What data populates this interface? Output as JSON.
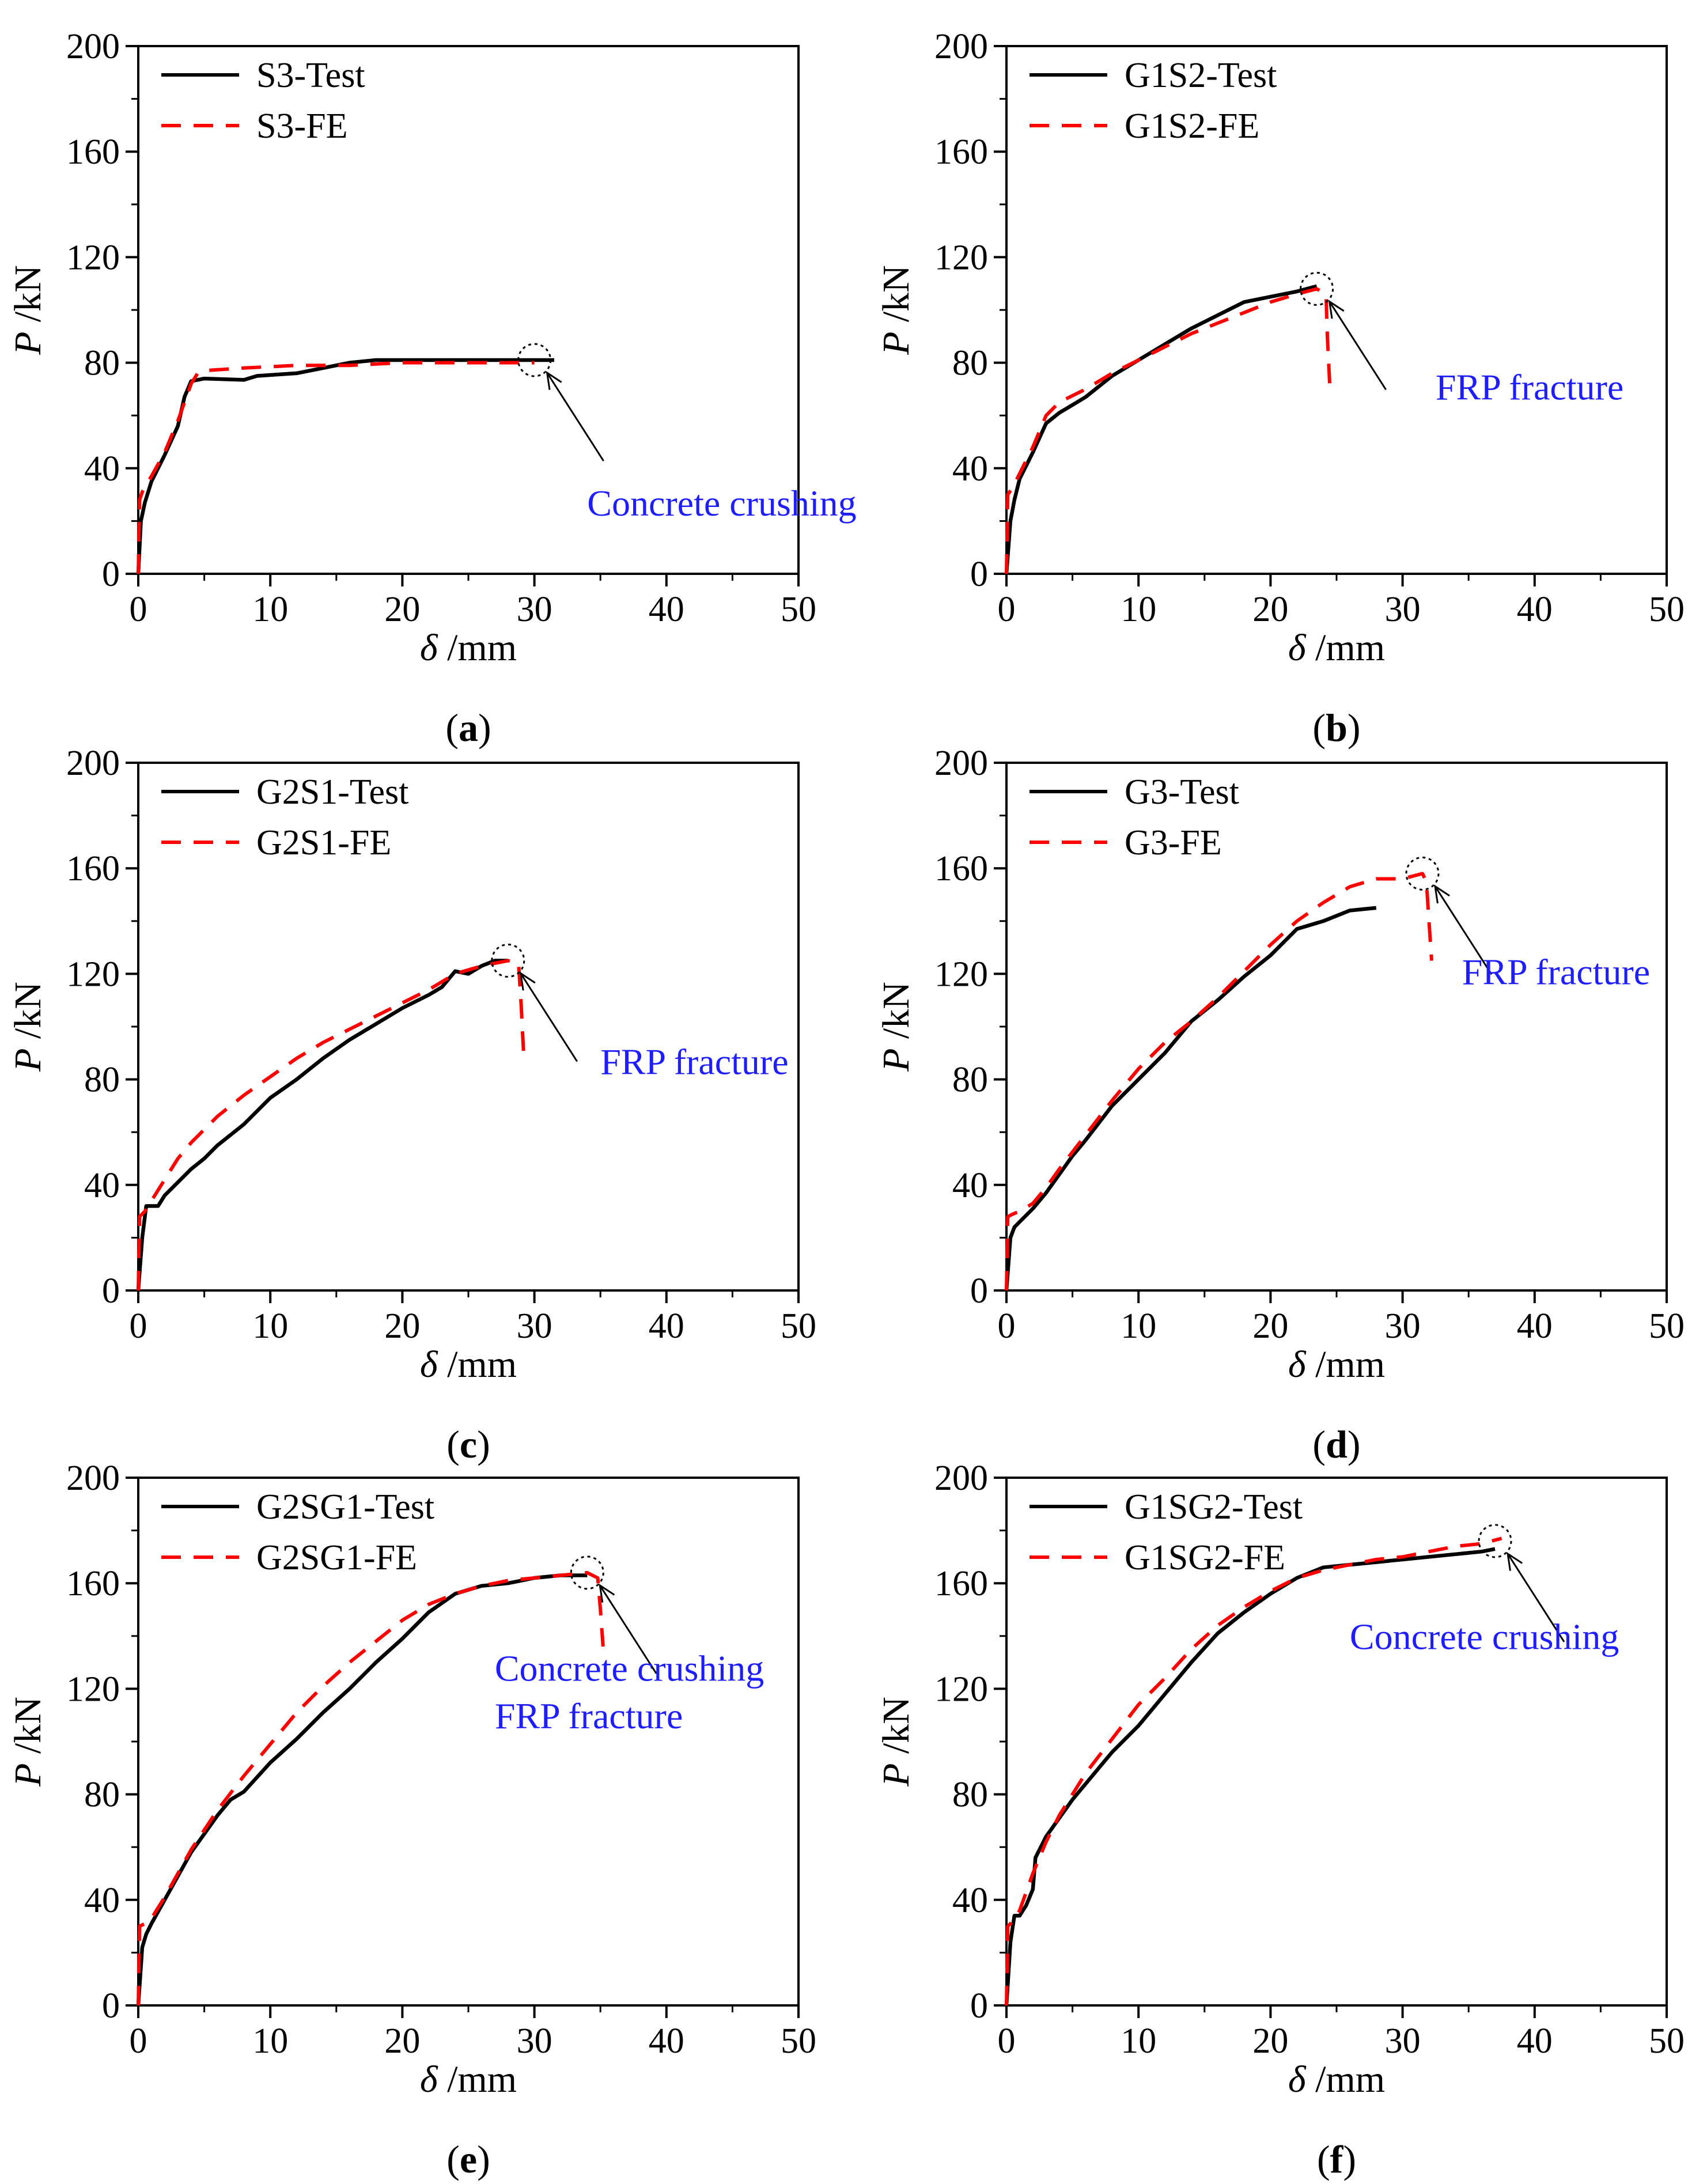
{
  "figure": {
    "panel_label_template": [
      "(",
      ")"
    ]
  },
  "chart_data": [
    {
      "type": "line",
      "panel": "a",
      "xlabel": "δ /mm",
      "ylabel": "P /kN",
      "xlim": [
        0,
        50
      ],
      "ylim": [
        0,
        200
      ],
      "xticks": [
        0,
        10,
        20,
        30,
        40,
        50
      ],
      "yticks": [
        0,
        40,
        80,
        120,
        160,
        200
      ],
      "legend_position": "top-left",
      "series": [
        {
          "name": "S3-Test",
          "style": "solid",
          "color": "#000000",
          "x": [
            0,
            0.2,
            0.5,
            1,
            2,
            3,
            3.5,
            4,
            5,
            8,
            9,
            12,
            14,
            16,
            18,
            20,
            25,
            30,
            31.5
          ],
          "y": [
            0,
            20,
            27,
            35,
            45,
            56,
            67,
            73,
            74,
            73.5,
            75,
            76,
            78,
            80,
            81,
            81,
            81,
            81,
            81
          ]
        },
        {
          "name": "S3-FE",
          "style": "dashed",
          "color": "#ff0000",
          "x": [
            0,
            0.1,
            0.3,
            1,
            2,
            3,
            4,
            4.5,
            5,
            8,
            12,
            16,
            20,
            25,
            30
          ],
          "y": [
            0,
            28,
            31,
            37,
            46,
            58,
            72,
            76,
            77,
            78,
            79,
            79,
            80,
            80,
            80
          ]
        }
      ],
      "annotations": [
        {
          "text": "Concrete crushing",
          "x": 30,
          "y": 81,
          "tx": 34,
          "ty": 22
        }
      ]
    },
    {
      "type": "line",
      "panel": "b",
      "xlabel": "δ /mm",
      "ylabel": "P /kN",
      "xlim": [
        0,
        50
      ],
      "ylim": [
        0,
        200
      ],
      "xticks": [
        0,
        10,
        20,
        30,
        40,
        50
      ],
      "yticks": [
        0,
        40,
        80,
        120,
        160,
        200
      ],
      "legend_position": "top-left",
      "series": [
        {
          "name": "G1S2-Test",
          "style": "solid",
          "color": "#000000",
          "x": [
            0,
            0.3,
            0.6,
            1,
            2,
            3,
            4,
            5,
            6,
            8,
            10,
            12,
            14,
            16,
            18,
            20,
            22,
            23.5
          ],
          "y": [
            0,
            20,
            28,
            36,
            46,
            57,
            61,
            64,
            67,
            75,
            81,
            87,
            93,
            98,
            103,
            105,
            107,
            109
          ]
        },
        {
          "name": "G1S2-FE",
          "style": "dashed",
          "color": "#ff0000",
          "x": [
            0,
            0.1,
            0.5,
            1,
            2,
            3,
            4,
            6,
            8,
            10,
            12,
            14,
            16,
            18,
            20,
            22,
            23.5,
            24.2,
            24.3,
            24.5
          ],
          "y": [
            0,
            30,
            33,
            38,
            48,
            60,
            65,
            70,
            76,
            81,
            86,
            91,
            95,
            99,
            103,
            106,
            108,
            106,
            90,
            70
          ]
        }
      ],
      "annotations": [
        {
          "text": "FRP fracture",
          "x": 23.5,
          "y": 108,
          "tx": 32.5,
          "ty": 66
        }
      ]
    },
    {
      "type": "line",
      "panel": "c",
      "xlabel": "δ /mm",
      "ylabel": "P /kN",
      "xlim": [
        0,
        50
      ],
      "ylim": [
        0,
        200
      ],
      "xticks": [
        0,
        10,
        20,
        30,
        40,
        50
      ],
      "yticks": [
        0,
        40,
        80,
        120,
        160,
        200
      ],
      "legend_position": "top-left",
      "series": [
        {
          "name": "G2S1-Test",
          "style": "solid",
          "color": "#000000",
          "x": [
            0,
            0.3,
            0.6,
            1,
            1.5,
            2,
            3,
            4,
            5,
            6,
            8,
            10,
            12,
            14,
            16,
            18,
            20,
            22,
            23,
            24,
            25,
            26,
            27,
            28
          ],
          "y": [
            0,
            20,
            32,
            32,
            32,
            36,
            41,
            46,
            50,
            55,
            63,
            73,
            80,
            88,
            95,
            101,
            107,
            112,
            115,
            121,
            120,
            123,
            125,
            125
          ]
        },
        {
          "name": "G2S1-FE",
          "style": "dashed",
          "color": "#ff0000",
          "x": [
            0,
            0.1,
            0.5,
            1,
            2,
            3,
            4,
            6,
            8,
            10,
            12,
            14,
            16,
            18,
            20,
            22,
            24,
            26,
            28,
            28.8,
            29,
            29.2
          ],
          "y": [
            0,
            28,
            30,
            34,
            42,
            50,
            56,
            66,
            74,
            81,
            88,
            94,
            99,
            104,
            109,
            114,
            120,
            123,
            125,
            124,
            108,
            88
          ]
        }
      ],
      "annotations": [
        {
          "text": "FRP fracture",
          "x": 28,
          "y": 125,
          "tx": 35,
          "ty": 82
        }
      ]
    },
    {
      "type": "line",
      "panel": "d",
      "xlabel": "δ /mm",
      "ylabel": "P /kN",
      "xlim": [
        0,
        50
      ],
      "ylim": [
        0,
        200
      ],
      "xticks": [
        0,
        10,
        20,
        30,
        40,
        50
      ],
      "yticks": [
        0,
        40,
        80,
        120,
        160,
        200
      ],
      "legend_position": "top-left",
      "series": [
        {
          "name": "G3-Test",
          "style": "solid",
          "color": "#000000",
          "x": [
            0,
            0.3,
            0.6,
            1,
            2,
            3,
            4,
            5,
            6,
            8,
            10,
            12,
            14,
            16,
            18,
            20,
            22,
            24,
            26,
            28
          ],
          "y": [
            0,
            20,
            24,
            26,
            31,
            37,
            44,
            51,
            57,
            70,
            80,
            90,
            102,
            110,
            119,
            127,
            137,
            140,
            144,
            145
          ]
        },
        {
          "name": "G3-FE",
          "style": "dashed",
          "color": "#ff0000",
          "x": [
            0,
            0.1,
            0.5,
            1,
            2,
            3,
            4,
            6,
            8,
            10,
            12,
            14,
            16,
            18,
            20,
            22,
            24,
            26,
            28,
            30,
            31.5,
            31.8,
            32,
            32.2
          ],
          "y": [
            0,
            28,
            29,
            30,
            33,
            39,
            46,
            59,
            72,
            84,
            94,
            102,
            111,
            121,
            131,
            140,
            147,
            153,
            156,
            156,
            158,
            155,
            140,
            125
          ]
        }
      ],
      "annotations": [
        {
          "text": "FRP fracture",
          "x": 31.5,
          "y": 158,
          "tx": 34.5,
          "ty": 116
        }
      ]
    },
    {
      "type": "line",
      "panel": "e",
      "xlabel": "δ /mm",
      "ylabel": "P /kN",
      "xlim": [
        0,
        50
      ],
      "ylim": [
        0,
        200
      ],
      "xticks": [
        0,
        10,
        20,
        30,
        40,
        50
      ],
      "yticks": [
        0,
        40,
        80,
        120,
        160,
        200
      ],
      "legend_position": "top-left",
      "series": [
        {
          "name": "G2SG1-Test",
          "style": "solid",
          "color": "#000000",
          "x": [
            0,
            0.3,
            0.6,
            1,
            2,
            3,
            4,
            5,
            6,
            7,
            8,
            10,
            12,
            14,
            16,
            18,
            20,
            22,
            24,
            26,
            28,
            30,
            32,
            34
          ],
          "y": [
            0,
            22,
            27,
            31,
            40,
            49,
            58,
            65,
            72,
            78,
            81,
            92,
            101,
            111,
            120,
            130,
            139,
            149,
            156,
            159,
            160,
            162,
            163,
            163
          ]
        },
        {
          "name": "G2SG1-FE",
          "style": "dashed",
          "color": "#ff0000",
          "x": [
            0,
            0.1,
            0.5,
            1,
            2,
            3,
            4,
            6,
            8,
            10,
            12,
            14,
            16,
            18,
            20,
            22,
            24,
            26,
            28,
            30,
            32,
            34,
            34.8,
            35,
            35.2
          ],
          "y": [
            0,
            30,
            31,
            33,
            41,
            50,
            59,
            74,
            87,
            99,
            111,
            121,
            130,
            138,
            146,
            152,
            156,
            159,
            161,
            162,
            163,
            164,
            162,
            150,
            136
          ]
        }
      ],
      "annotations": [
        {
          "text": "Concrete crushing",
          "x": 34,
          "y": 164,
          "tx": 27,
          "ty": 123
        },
        {
          "text": "FRP fracture",
          "x": null,
          "y": null,
          "tx": 27,
          "ty": 105
        }
      ]
    },
    {
      "type": "line",
      "panel": "f",
      "xlabel": "δ /mm",
      "ylabel": "P /kN",
      "xlim": [
        0,
        50
      ],
      "ylim": [
        0,
        200
      ],
      "xticks": [
        0,
        10,
        20,
        30,
        40,
        50
      ],
      "yticks": [
        0,
        40,
        80,
        120,
        160,
        200
      ],
      "legend_position": "top-left",
      "series": [
        {
          "name": "G1SG2-Test",
          "style": "solid",
          "color": "#000000",
          "x": [
            0,
            0.3,
            0.6,
            1,
            1.5,
            2,
            2.2,
            3,
            4,
            5,
            6,
            8,
            10,
            12,
            14,
            16,
            18,
            20,
            22,
            24,
            26,
            28,
            30,
            32,
            34,
            36,
            37
          ],
          "y": [
            0,
            24,
            34,
            34,
            38,
            44,
            56,
            64,
            71,
            78,
            84,
            96,
            106,
            118,
            130,
            141,
            149,
            156,
            162,
            166,
            167,
            168,
            169,
            170,
            171,
            172,
            173
          ]
        },
        {
          "name": "G1SG2-FE",
          "style": "dashed",
          "color": "#ff0000",
          "x": [
            0,
            0.1,
            0.5,
            1,
            2,
            3,
            4,
            6,
            8,
            10,
            12,
            14,
            16,
            18,
            20,
            22,
            24,
            26,
            28,
            30,
            32,
            34,
            36,
            37.5
          ],
          "y": [
            0,
            30,
            32,
            36,
            50,
            62,
            72,
            88,
            101,
            114,
            124,
            135,
            144,
            151,
            157,
            162,
            165,
            167,
            169,
            170,
            172,
            174,
            175,
            177
          ]
        }
      ],
      "annotations": [
        {
          "text": "Concrete crushing",
          "x": 37,
          "y": 176,
          "tx": 26,
          "ty": 135
        }
      ]
    }
  ]
}
